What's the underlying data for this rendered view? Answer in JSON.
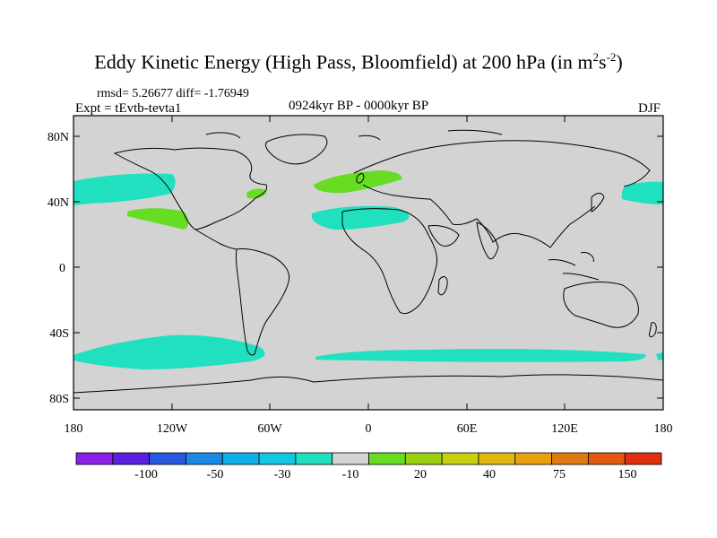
{
  "title": {
    "main": "Eddy Kinetic Energy (High Pass, Bloomfield) at 200 hPa (in m",
    "sup1": "2",
    "s": "s",
    "sup2": "-2",
    "close": ")"
  },
  "stats": "rmsd= 5.26677 diff= -1.76949",
  "experiment": "Expt = tEvtb-tevta1",
  "period": "0924kyr BP - 0000kyr BP",
  "season": "DJF",
  "axes": {
    "x_ticks": [
      "180",
      "120W",
      "60W",
      "0",
      "60E",
      "120E",
      "180"
    ],
    "y_ticks": [
      "80N",
      "40N",
      "0",
      "40S",
      "80S"
    ]
  },
  "colors": {
    "ocean_land": "#d3d3d3",
    "negative_band": "#20e0c0",
    "positive_band": "#66dd22",
    "coastline": "#000000"
  },
  "colorbar": {
    "colors": [
      "#8a1fe6",
      "#5a20e0",
      "#2858e0",
      "#1a8ae6",
      "#10b0e6",
      "#10c8e0",
      "#20e0c0",
      "#d3d3d3",
      "#66dd22",
      "#9ccf10",
      "#c8d010",
      "#e0b810",
      "#e8a010",
      "#e07a10",
      "#e05a10",
      "#e03010"
    ],
    "labels": [
      "-100",
      "-50",
      "-30",
      "-10",
      "20",
      "40",
      "75",
      "150"
    ]
  }
}
